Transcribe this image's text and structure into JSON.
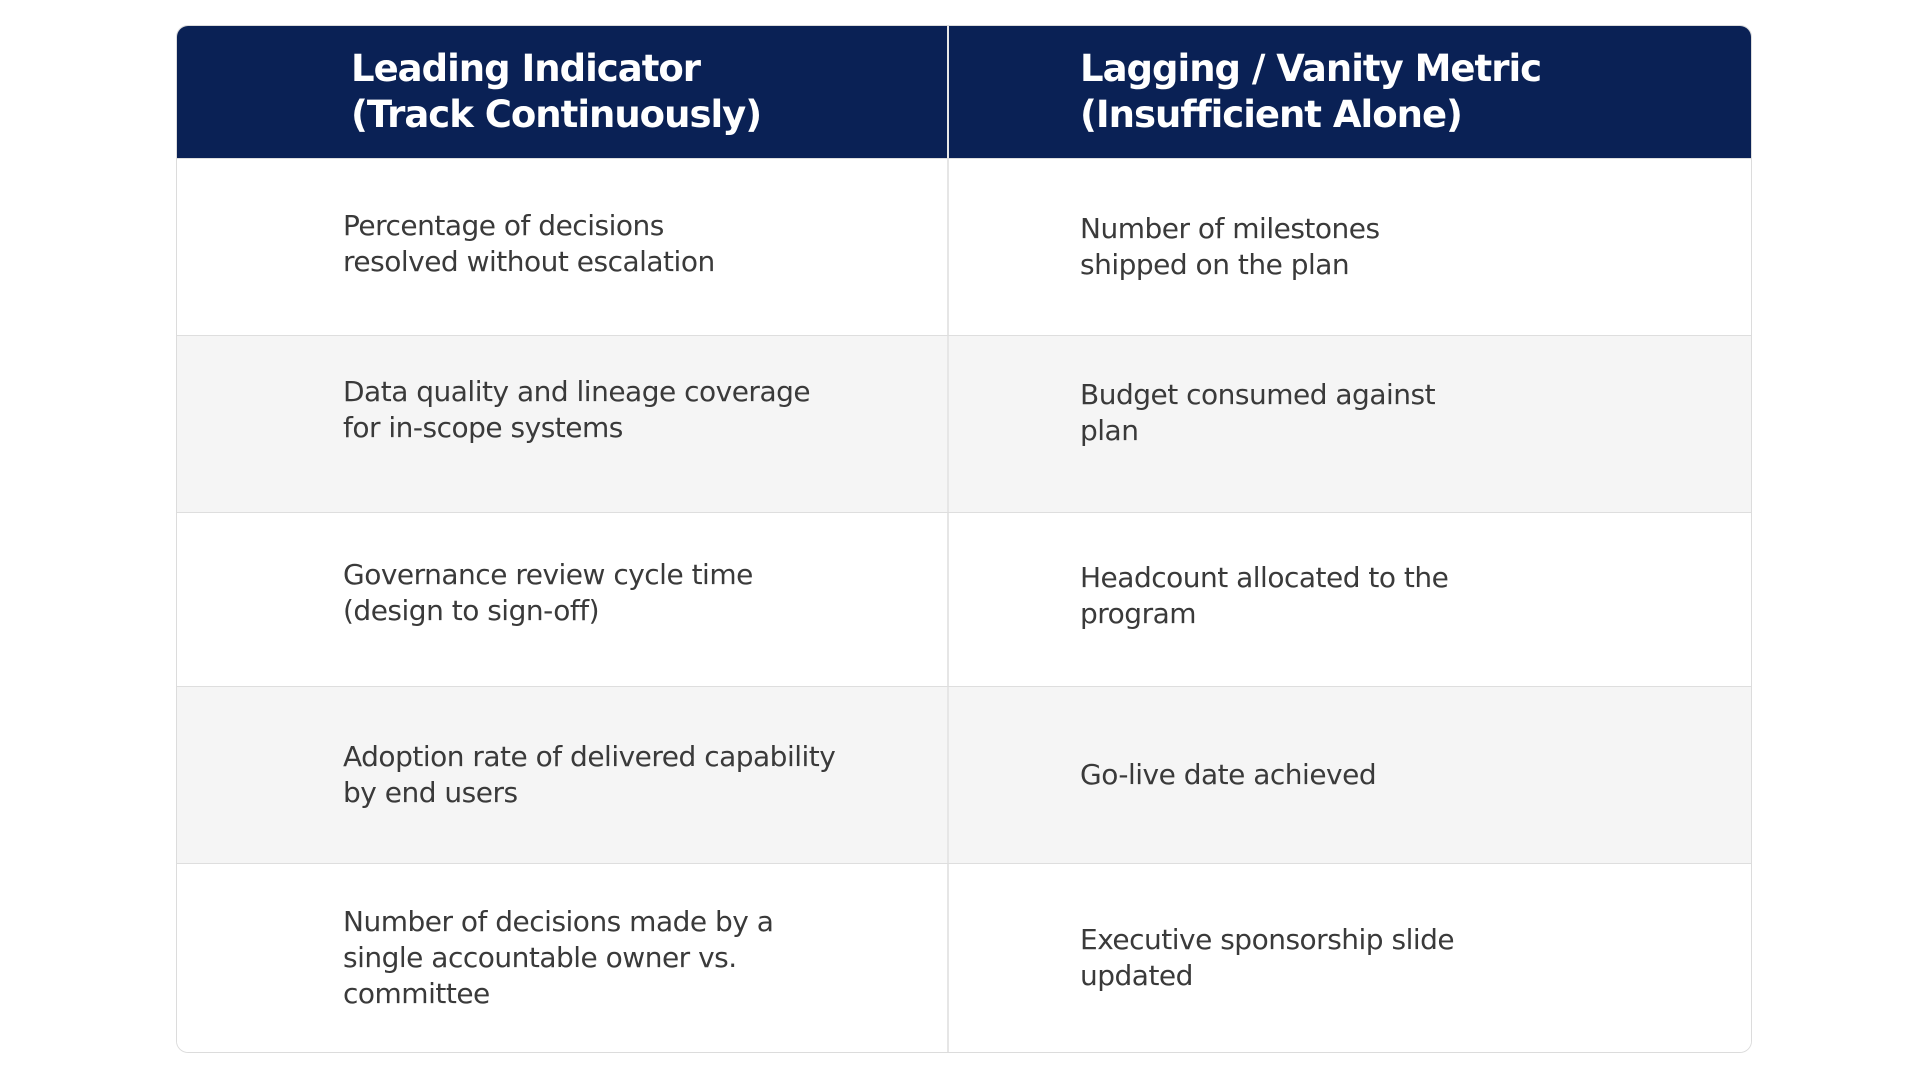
{
  "table": {
    "header": {
      "left": [
        "Leading Indicator",
        "(Track Continuously)"
      ],
      "right": [
        "Lagging / Vanity Metric",
        "(Insufficient Alone)"
      ]
    },
    "rows": [
      {
        "leading": [
          "Percentage of decisions",
          "resolved without escalation"
        ],
        "lagging": [
          "Number of milestones",
          "shipped on the plan"
        ]
      },
      {
        "leading": [
          "Data quality and lineage coverage",
          "for in-scope systems"
        ],
        "lagging": [
          "Budget consumed against",
          "plan"
        ]
      },
      {
        "leading": [
          "Governance review cycle time",
          "(design to sign-off)"
        ],
        "lagging": [
          "Headcount allocated to the",
          "program"
        ]
      },
      {
        "leading": [
          "Adoption rate of delivered capability",
          "by end users"
        ],
        "lagging": [
          "Go-live date achieved"
        ]
      },
      {
        "leading": [
          "Number of decisions made by a",
          "single accountable owner vs.",
          "committee"
        ],
        "lagging": [
          "Executive sponsorship slide",
          "updated"
        ]
      }
    ]
  },
  "colors": {
    "header_bg": "#0a2155",
    "header_text": "#ffffff",
    "body_text": "#3a3a3a",
    "row_alt_bg": "#f5f5f5"
  }
}
